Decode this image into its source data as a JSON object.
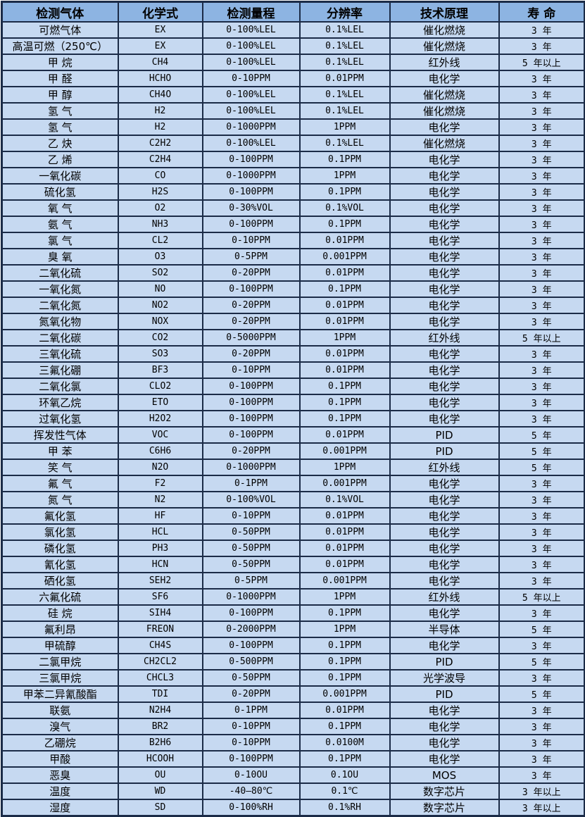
{
  "table": {
    "columns": [
      "检测气体",
      "化学式",
      "检测量程",
      "分辨率",
      "技术原理",
      "寿 命"
    ],
    "column_keys": [
      "gas",
      "formula",
      "range",
      "resolution",
      "technology",
      "lifespan"
    ],
    "rows": [
      [
        "可燃气体",
        "EX",
        "0-100%LEL",
        "0.1%LEL",
        "催化燃烧",
        "3 年"
      ],
      [
        "高温可燃（250℃）",
        "EX",
        "0-100%LEL",
        "0.1%LEL",
        "催化燃烧",
        "3 年"
      ],
      [
        "甲 烷",
        "CH4",
        "0-100%LEL",
        "0.1%LEL",
        "红外线",
        "5 年以上"
      ],
      [
        "甲 醛",
        "HCHO",
        "0-10PPM",
        "0.01PPM",
        "电化学",
        "3 年"
      ],
      [
        "甲 醇",
        "CH4O",
        "0-100%LEL",
        "0.1%LEL",
        "催化燃烧",
        "3 年"
      ],
      [
        "氢 气",
        "H2",
        "0-100%LEL",
        "0.1%LEL",
        "催化燃烧",
        "3 年"
      ],
      [
        "氢 气",
        "H2",
        "0-1000PPM",
        "1PPM",
        "电化学",
        "3 年"
      ],
      [
        "乙 炔",
        "C2H2",
        "0-100%LEL",
        "0.1%LEL",
        "催化燃烧",
        "3 年"
      ],
      [
        "乙 烯",
        "C2H4",
        "0-100PPM",
        "0.1PPM",
        "电化学",
        "3 年"
      ],
      [
        "一氧化碳",
        "CO",
        "0-1000PPM",
        "1PPM",
        "电化学",
        "3 年"
      ],
      [
        "硫化氢",
        "H2S",
        "0-100PPM",
        "0.1PPM",
        "电化学",
        "3 年"
      ],
      [
        "氧 气",
        "O2",
        "0-30%VOL",
        "0.1%VOL",
        "电化学",
        "3 年"
      ],
      [
        "氨 气",
        "NH3",
        "0-100PPM",
        "0.1PPM",
        "电化学",
        "3 年"
      ],
      [
        "氯 气",
        "CL2",
        "0-10PPM",
        "0.01PPM",
        "电化学",
        "3 年"
      ],
      [
        "臭 氧",
        "O3",
        "0-5PPM",
        "0.001PPM",
        "电化学",
        "3 年"
      ],
      [
        "二氧化硫",
        "SO2",
        "0-20PPM",
        "0.01PPM",
        "电化学",
        "3 年"
      ],
      [
        "一氧化氮",
        "NO",
        "0-100PPM",
        "0.1PPM",
        "电化学",
        "3 年"
      ],
      [
        "二氧化氮",
        "NO2",
        "0-20PPM",
        "0.01PPM",
        "电化学",
        "3 年"
      ],
      [
        "氮氧化物",
        "NOX",
        "0-20PPM",
        "0.01PPM",
        "电化学",
        "3 年"
      ],
      [
        "二氧化碳",
        "CO2",
        "0-5000PPM",
        "1PPM",
        "红外线",
        "5 年以上"
      ],
      [
        "三氧化硫",
        "SO3",
        "0-20PPM",
        "0.01PPM",
        "电化学",
        "3 年"
      ],
      [
        "三氟化硼",
        "BF3",
        "0-10PPM",
        "0.01PPM",
        "电化学",
        "3 年"
      ],
      [
        "二氧化氯",
        "CLO2",
        "0-100PPM",
        "0.1PPM",
        "电化学",
        "3 年"
      ],
      [
        "环氧乙烷",
        "ETO",
        "0-100PPM",
        "0.1PPM",
        "电化学",
        "3 年"
      ],
      [
        "过氧化氢",
        "H2O2",
        "0-100PPM",
        "0.1PPM",
        "电化学",
        "3 年"
      ],
      [
        "挥发性气体",
        "VOC",
        "0-100PPM",
        "0.01PPM",
        "PID",
        "5 年"
      ],
      [
        "甲 苯",
        "C6H6",
        "0-20PPM",
        "0.001PPM",
        "PID",
        "5 年"
      ],
      [
        "笑 气",
        "N2O",
        "0-1000PPM",
        "1PPM",
        "红外线",
        "5 年"
      ],
      [
        "氟 气",
        "F2",
        "0-1PPM",
        "0.001PPM",
        "电化学",
        "3 年"
      ],
      [
        "氮 气",
        "N2",
        "0-100%VOL",
        "0.1%VOL",
        "电化学",
        "3 年"
      ],
      [
        "氟化氢",
        "HF",
        "0-10PPM",
        "0.01PPM",
        "电化学",
        "3 年"
      ],
      [
        "氯化氢",
        "HCL",
        "0-50PPM",
        "0.01PPM",
        "电化学",
        "3 年"
      ],
      [
        "磷化氢",
        "PH3",
        "0-50PPM",
        "0.01PPM",
        "电化学",
        "3 年"
      ],
      [
        "氰化氢",
        "HCN",
        "0-50PPM",
        "0.01PPM",
        "电化学",
        "3 年"
      ],
      [
        "硒化氢",
        "SEH2",
        "0-5PPM",
        "0.001PPM",
        "电化学",
        "3 年"
      ],
      [
        "六氟化硫",
        "SF6",
        "0-1000PPM",
        "1PPM",
        "红外线",
        "5 年以上"
      ],
      [
        "硅 烷",
        "SIH4",
        "0-100PPM",
        "0.1PPM",
        "电化学",
        "3 年"
      ],
      [
        "氟利昂",
        "FREON",
        "0-2000PPM",
        "1PPM",
        "半导体",
        "5 年"
      ],
      [
        "甲硫醇",
        "CH4S",
        "0-100PPM",
        "0.1PPM",
        "电化学",
        "3 年"
      ],
      [
        "二氯甲烷",
        "CH2CL2",
        "0-500PPM",
        "0.1PPM",
        "PID",
        "5 年"
      ],
      [
        "三氯甲烷",
        "CHCL3",
        "0-50PPM",
        "0.1PPM",
        "光学波导",
        "3 年"
      ],
      [
        "甲苯二异氰酸酯",
        "TDI",
        "0-20PPM",
        "0.001PPM",
        "PID",
        "5 年"
      ],
      [
        "联氨",
        "N2H4",
        "0-1PPM",
        "0.01PPM",
        "电化学",
        "3 年"
      ],
      [
        "溴气",
        "BR2",
        "0-10PPM",
        "0.1PPM",
        "电化学",
        "3 年"
      ],
      [
        "乙硼烷",
        "B2H6",
        "0-10PPM",
        "0.0100M",
        "电化学",
        "3 年"
      ],
      [
        "甲酸",
        "HCOOH",
        "0-100PPM",
        "0.1PPM",
        "电化学",
        "3 年"
      ],
      [
        "恶臭",
        "OU",
        "0-10OU",
        "0.1OU",
        "MOS",
        "3 年"
      ],
      [
        "温度",
        "WD",
        "-40—80℃",
        "0.1℃",
        "数字芯片",
        "3 年以上"
      ],
      [
        "湿度",
        "SD",
        "0-100%RH",
        "0.1%RH",
        "数字芯片",
        "3 年以上"
      ]
    ]
  },
  "colors": {
    "header_bg": "#8db4e2",
    "row_bg": "#c6d9f1",
    "border": "#1b2b47",
    "text": "#000000"
  }
}
